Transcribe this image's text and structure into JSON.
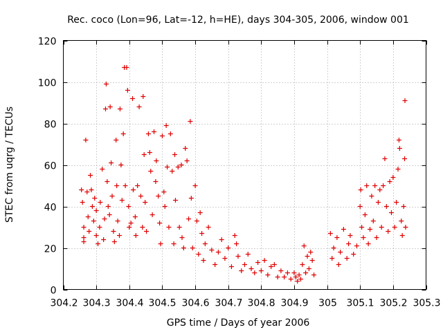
{
  "chart_data": {
    "type": "scatter",
    "title": "Rec. coco (Lon=96, Lat=-12, h=HE), days 304-305, 2006, window 001",
    "xlabel": "GPS time / Days of year 2006",
    "ylabel": "STEC from uqrg / TECUs",
    "xlim": [
      304.2,
      305.3
    ],
    "ylim": [
      0,
      120
    ],
    "xticks": [
      304.2,
      304.3,
      304.4,
      304.5,
      304.6,
      304.7,
      304.8,
      304.9,
      305,
      305.1,
      305.2,
      305.3
    ],
    "xtick_labels": [
      "304.2",
      "304.3",
      "304.4",
      "304.5",
      "304.6",
      "304.7",
      "304.8",
      "304.9",
      "305",
      "305.1",
      "305.2",
      "305.3"
    ],
    "yticks": [
      0,
      20,
      40,
      60,
      80,
      100,
      120
    ],
    "ytick_labels": [
      "0",
      "20",
      "40",
      "60",
      "80",
      "100",
      "120"
    ],
    "grid": true,
    "marker": "+",
    "color": "#e00000",
    "points": [
      [
        304.255,
        48
      ],
      [
        304.258,
        42
      ],
      [
        304.262,
        30
      ],
      [
        304.262,
        25
      ],
      [
        304.262,
        23
      ],
      [
        304.268,
        72
      ],
      [
        304.272,
        47
      ],
      [
        304.275,
        35
      ],
      [
        304.278,
        28
      ],
      [
        304.282,
        55
      ],
      [
        304.285,
        48
      ],
      [
        304.288,
        40
      ],
      [
        304.292,
        33
      ],
      [
        304.295,
        44
      ],
      [
        304.3,
        26
      ],
      [
        304.3,
        38
      ],
      [
        304.305,
        22
      ],
      [
        304.31,
        30
      ],
      [
        304.312,
        42
      ],
      [
        304.318,
        58
      ],
      [
        304.322,
        24
      ],
      [
        304.325,
        34
      ],
      [
        304.328,
        87
      ],
      [
        304.33,
        99
      ],
      [
        304.333,
        52
      ],
      [
        304.336,
        40
      ],
      [
        304.34,
        36
      ],
      [
        304.342,
        88
      ],
      [
        304.345,
        61
      ],
      [
        304.348,
        45
      ],
      [
        304.352,
        28
      ],
      [
        304.355,
        23
      ],
      [
        304.36,
        72
      ],
      [
        304.362,
        50
      ],
      [
        304.365,
        33
      ],
      [
        304.37,
        26
      ],
      [
        304.372,
        87
      ],
      [
        304.375,
        60
      ],
      [
        304.378,
        43
      ],
      [
        304.382,
        75
      ],
      [
        304.385,
        107
      ],
      [
        304.388,
        50
      ],
      [
        304.392,
        107
      ],
      [
        304.395,
        96
      ],
      [
        304.398,
        40
      ],
      [
        304.4,
        30
      ],
      [
        304.405,
        32
      ],
      [
        304.41,
        92
      ],
      [
        304.412,
        48
      ],
      [
        304.418,
        35
      ],
      [
        304.42,
        26
      ],
      [
        304.425,
        50
      ],
      [
        304.43,
        88
      ],
      [
        304.435,
        45
      ],
      [
        304.44,
        30
      ],
      [
        304.442,
        93
      ],
      [
        304.445,
        65
      ],
      [
        304.448,
        42
      ],
      [
        304.452,
        28
      ],
      [
        304.458,
        75
      ],
      [
        304.462,
        66
      ],
      [
        304.465,
        57
      ],
      [
        304.47,
        36
      ],
      [
        304.475,
        76
      ],
      [
        304.48,
        52
      ],
      [
        304.482,
        62
      ],
      [
        304.488,
        45
      ],
      [
        304.492,
        32
      ],
      [
        304.495,
        22
      ],
      [
        304.5,
        74
      ],
      [
        304.505,
        47
      ],
      [
        304.508,
        40
      ],
      [
        304.512,
        79
      ],
      [
        304.515,
        59
      ],
      [
        304.52,
        30
      ],
      [
        304.525,
        75
      ],
      [
        304.53,
        57
      ],
      [
        304.535,
        22
      ],
      [
        304.538,
        65
      ],
      [
        304.54,
        43
      ],
      [
        304.548,
        59
      ],
      [
        304.552,
        30
      ],
      [
        304.558,
        60
      ],
      [
        304.56,
        25
      ],
      [
        304.565,
        20
      ],
      [
        304.57,
        68
      ],
      [
        304.575,
        62
      ],
      [
        304.58,
        34
      ],
      [
        304.585,
        81
      ],
      [
        304.588,
        44
      ],
      [
        304.592,
        20
      ],
      [
        304.6,
        50
      ],
      [
        304.605,
        33
      ],
      [
        304.61,
        17
      ],
      [
        304.615,
        37
      ],
      [
        304.62,
        27
      ],
      [
        304.625,
        14
      ],
      [
        304.63,
        22
      ],
      [
        304.64,
        30
      ],
      [
        304.65,
        19
      ],
      [
        304.66,
        12
      ],
      [
        304.67,
        18
      ],
      [
        304.68,
        24
      ],
      [
        304.69,
        15
      ],
      [
        304.7,
        20
      ],
      [
        304.71,
        11
      ],
      [
        304.72,
        26
      ],
      [
        304.725,
        22
      ],
      [
        304.73,
        16
      ],
      [
        304.74,
        9
      ],
      [
        304.75,
        12
      ],
      [
        304.76,
        17
      ],
      [
        304.77,
        10
      ],
      [
        304.78,
        8
      ],
      [
        304.79,
        13
      ],
      [
        304.8,
        9
      ],
      [
        304.81,
        14
      ],
      [
        304.82,
        7
      ],
      [
        304.83,
        11
      ],
      [
        304.84,
        12
      ],
      [
        304.85,
        6
      ],
      [
        304.86,
        9
      ],
      [
        304.87,
        6
      ],
      [
        304.88,
        8
      ],
      [
        304.89,
        5
      ],
      [
        304.9,
        8
      ],
      [
        304.905,
        6
      ],
      [
        304.91,
        4
      ],
      [
        304.915,
        7
      ],
      [
        304.92,
        5
      ],
      [
        304.925,
        12
      ],
      [
        304.93,
        21
      ],
      [
        304.935,
        8
      ],
      [
        304.94,
        16
      ],
      [
        304.945,
        10
      ],
      [
        304.95,
        18
      ],
      [
        304.955,
        14
      ],
      [
        304.96,
        7
      ],
      [
        305.01,
        27
      ],
      [
        305.015,
        15
      ],
      [
        305.02,
        20
      ],
      [
        305.03,
        25
      ],
      [
        305.035,
        12
      ],
      [
        305.04,
        18
      ],
      [
        305.05,
        29
      ],
      [
        305.06,
        15
      ],
      [
        305.065,
        22
      ],
      [
        305.07,
        26
      ],
      [
        305.08,
        17
      ],
      [
        305.09,
        21
      ],
      [
        305.1,
        40
      ],
      [
        305.102,
        48
      ],
      [
        305.105,
        30
      ],
      [
        305.11,
        25
      ],
      [
        305.115,
        36
      ],
      [
        305.12,
        50
      ],
      [
        305.125,
        22
      ],
      [
        305.13,
        29
      ],
      [
        305.135,
        45
      ],
      [
        305.14,
        33
      ],
      [
        305.145,
        50
      ],
      [
        305.15,
        25
      ],
      [
        305.155,
        42
      ],
      [
        305.16,
        48
      ],
      [
        305.165,
        30
      ],
      [
        305.17,
        50
      ],
      [
        305.175,
        63
      ],
      [
        305.18,
        40
      ],
      [
        305.185,
        28
      ],
      [
        305.19,
        52
      ],
      [
        305.195,
        37
      ],
      [
        305.2,
        54
      ],
      [
        305.205,
        30
      ],
      [
        305.21,
        42
      ],
      [
        305.215,
        58
      ],
      [
        305.218,
        72
      ],
      [
        305.22,
        68
      ],
      [
        305.225,
        33
      ],
      [
        305.228,
        26
      ],
      [
        305.232,
        40
      ],
      [
        305.235,
        63
      ],
      [
        305.236,
        91
      ],
      [
        305.238,
        30
      ]
    ]
  }
}
